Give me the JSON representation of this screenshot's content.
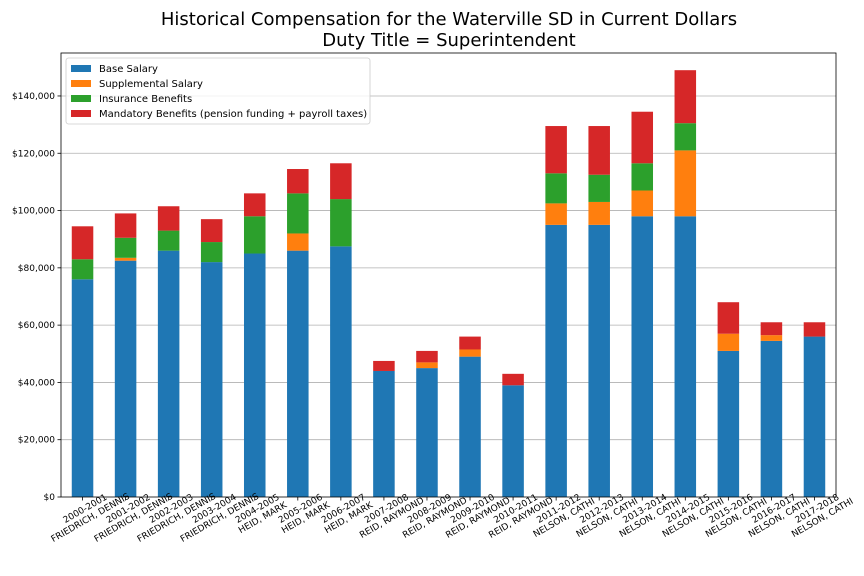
{
  "chart_data": {
    "type": "bar",
    "stacked": true,
    "title_line1": "Historical Compensation for the Waterville SD in Current Dollars",
    "title_line2": "Duty Title = Superintendent",
    "xlabel": "",
    "ylabel": "",
    "ylim": [
      0,
      155000
    ],
    "yticks": [
      0,
      20000,
      40000,
      60000,
      80000,
      100000,
      120000,
      140000
    ],
    "ytick_labels": [
      "$0",
      "$20,000",
      "$40,000",
      "$60,000",
      "$80,000",
      "$100,000",
      "$120,000",
      "$140,000"
    ],
    "grid": "horizontal",
    "legend_position": "top-left",
    "categories": [
      [
        "2000-2001",
        "FRIEDRICH, DENNIS"
      ],
      [
        "2001-2002",
        "FRIEDRICH, DENNIS"
      ],
      [
        "2002-2003",
        "FRIEDRICH, DENNIS"
      ],
      [
        "2003-2004",
        "FRIEDRICH, DENNIS"
      ],
      [
        "2004-2005",
        "HEID, MARK"
      ],
      [
        "2005-2006",
        "HEID, MARK"
      ],
      [
        "2006-2007",
        "HEID, MARK"
      ],
      [
        "2007-2008",
        "REID, RAYMOND"
      ],
      [
        "2008-2009",
        "REID, RAYMOND"
      ],
      [
        "2009-2010",
        "REID, RAYMOND"
      ],
      [
        "2010-2011",
        "REID, RAYMOND"
      ],
      [
        "2011-2012",
        "NELSON, CATHI"
      ],
      [
        "2012-2013",
        "NELSON, CATHI"
      ],
      [
        "2013-2014",
        "NELSON, CATHI"
      ],
      [
        "2014-2015",
        "NELSON, CATHI"
      ],
      [
        "2015-2016",
        "NELSON, CATHI"
      ],
      [
        "2016-2017",
        "NELSON, CATHI"
      ],
      [
        "2017-2018",
        "NELSON, CATHI"
      ]
    ],
    "series": [
      {
        "name": "Base Salary",
        "color": "#1f77b4",
        "values": [
          76000,
          82500,
          86000,
          82000,
          85000,
          86000,
          87500,
          44000,
          45000,
          49000,
          39000,
          95000,
          95000,
          98000,
          98000,
          51000,
          54500,
          56000
        ]
      },
      {
        "name": "Supplemental Salary",
        "color": "#ff7f0e",
        "values": [
          0,
          1000,
          0,
          0,
          0,
          6000,
          0,
          0,
          2000,
          2500,
          0,
          7500,
          8000,
          9000,
          23000,
          6000,
          2000,
          0
        ]
      },
      {
        "name": "Insurance Benefits",
        "color": "#2ca02c",
        "values": [
          7000,
          7000,
          7000,
          7000,
          13000,
          14000,
          16500,
          0,
          0,
          0,
          0,
          10500,
          9500,
          9500,
          9500,
          0,
          0,
          0
        ]
      },
      {
        "name": "Mandatory Benefits (pension funding + payroll taxes)",
        "color": "#d62728",
        "values": [
          11500,
          8500,
          8500,
          8000,
          8000,
          8500,
          12500,
          3500,
          4000,
          4500,
          4000,
          16500,
          17000,
          18000,
          18500,
          11000,
          4500,
          5000
        ]
      }
    ]
  }
}
